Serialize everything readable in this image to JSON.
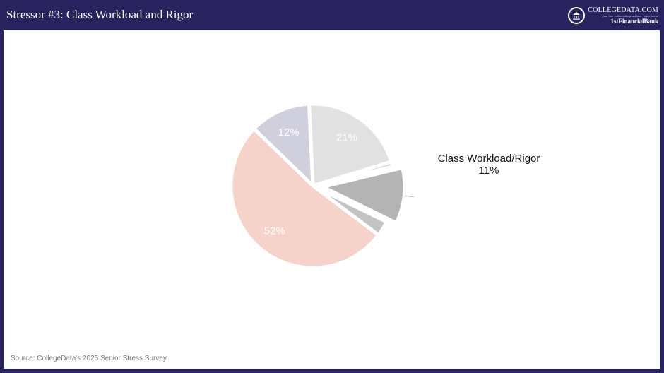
{
  "header": {
    "title": "Stressor #3: Class Workload and Rigor",
    "logo_name": "COLLEGEDATA.COM",
    "logo_tagline": "your free online college advisor · a service of",
    "logo_bank": "1stFinancialBank"
  },
  "footer": {
    "source": "Source: CollegeData's 2025 Senior Stress Survey"
  },
  "colors": {
    "background": "#28235f",
    "panel": "#ffffff"
  },
  "chart_data": {
    "type": "pie",
    "title": "",
    "slices": [
      {
        "value": 11,
        "label": "11%",
        "name": "Class Workload/Rigor",
        "color": "#b4b4b4",
        "exploded": true
      },
      {
        "value": 3,
        "label": "",
        "color": "#c3c3c3",
        "exploded": false
      },
      {
        "value": 52,
        "label": "52%",
        "color": "#f6d3ca",
        "exploded": false
      },
      {
        "value": 12,
        "label": "12%",
        "color": "#cfcfdd",
        "exploded": false
      },
      {
        "value": 21,
        "label": "21%",
        "color": "#e1e1e1",
        "exploded": false
      },
      {
        "value": 1,
        "label": "",
        "color": "#c8dbee",
        "exploded": false
      }
    ],
    "callout": {
      "name": "Class Workload/Rigor",
      "value_label": "11%"
    }
  }
}
